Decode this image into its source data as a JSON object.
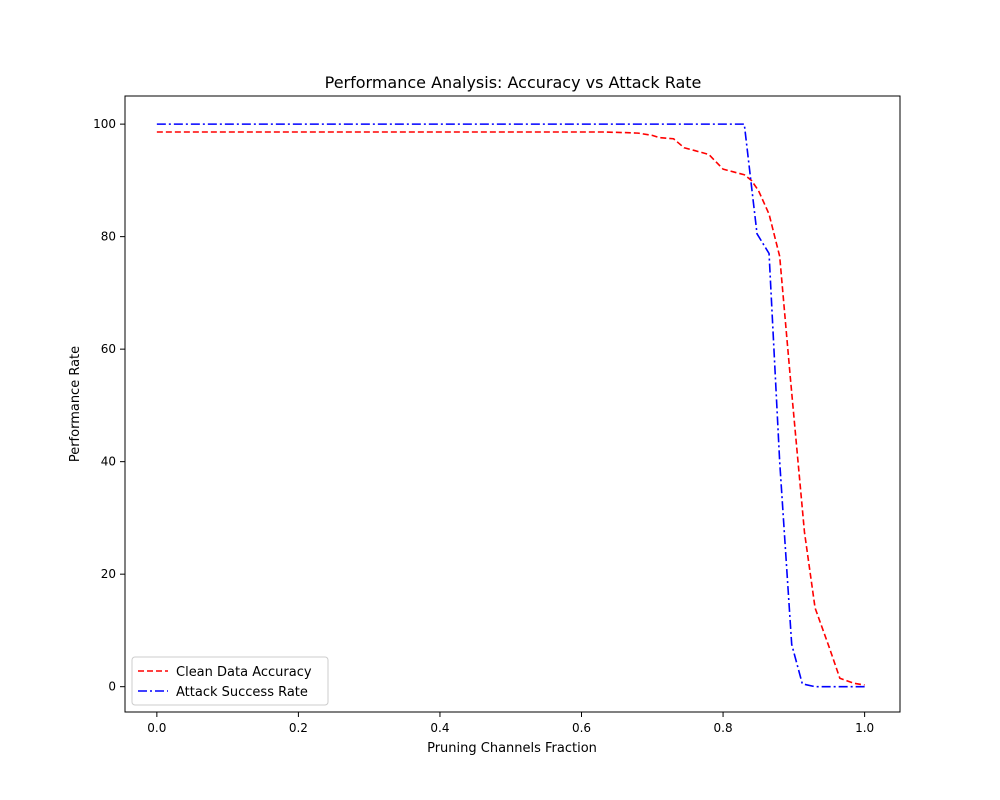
{
  "chart_data": {
    "type": "line",
    "title": "Performance Analysis: Accuracy vs Attack Rate",
    "xlabel": "Pruning Channels Fraction",
    "ylabel": "Performance Rate",
    "xlim": [
      -0.045,
      1.05
    ],
    "ylim": [
      -4.5,
      105
    ],
    "xticks": [
      0.0,
      0.2,
      0.4,
      0.6,
      0.8,
      1.0
    ],
    "xtick_labels": [
      "0.0",
      "0.2",
      "0.4",
      "0.6",
      "0.8",
      "1.0"
    ],
    "yticks": [
      0,
      20,
      40,
      60,
      80,
      100
    ],
    "ytick_labels": [
      "0",
      "20",
      "40",
      "60",
      "80",
      "100"
    ],
    "grid": false,
    "legend_position": "lower-left",
    "series": [
      {
        "name": "Clean Data Accuracy",
        "color": "#ff0000",
        "linestyle": "dashed",
        "x": [
          0.0,
          0.1,
          0.2,
          0.3,
          0.4,
          0.5,
          0.6,
          0.63,
          0.66,
          0.68,
          0.7,
          0.71,
          0.73,
          0.745,
          0.76,
          0.78,
          0.8,
          0.815,
          0.83,
          0.84,
          0.85,
          0.865,
          0.88,
          0.895,
          0.915,
          0.93,
          0.95,
          0.965,
          0.985,
          1.0
        ],
        "y": [
          98.6,
          98.6,
          98.6,
          98.6,
          98.6,
          98.6,
          98.6,
          98.6,
          98.5,
          98.4,
          98.0,
          97.6,
          97.4,
          95.8,
          95.3,
          94.6,
          92.0,
          91.5,
          91.0,
          90.0,
          88.2,
          84.0,
          76.5,
          55.0,
          27.5,
          14.0,
          7.0,
          1.5,
          0.6,
          0.3
        ]
      },
      {
        "name": "Attack Success Rate",
        "color": "#0000ff",
        "linestyle": "dashdot",
        "x": [
          0.0,
          0.1,
          0.2,
          0.3,
          0.4,
          0.5,
          0.6,
          0.7,
          0.8,
          0.83,
          0.848,
          0.865,
          0.88,
          0.897,
          0.912,
          0.93,
          0.95,
          0.97,
          1.0
        ],
        "y": [
          100,
          100,
          100,
          100,
          100,
          100,
          100,
          100,
          100,
          100,
          80.5,
          77.0,
          40.0,
          7.5,
          0.5,
          0.0,
          0.0,
          0.0,
          0.0
        ]
      }
    ]
  }
}
